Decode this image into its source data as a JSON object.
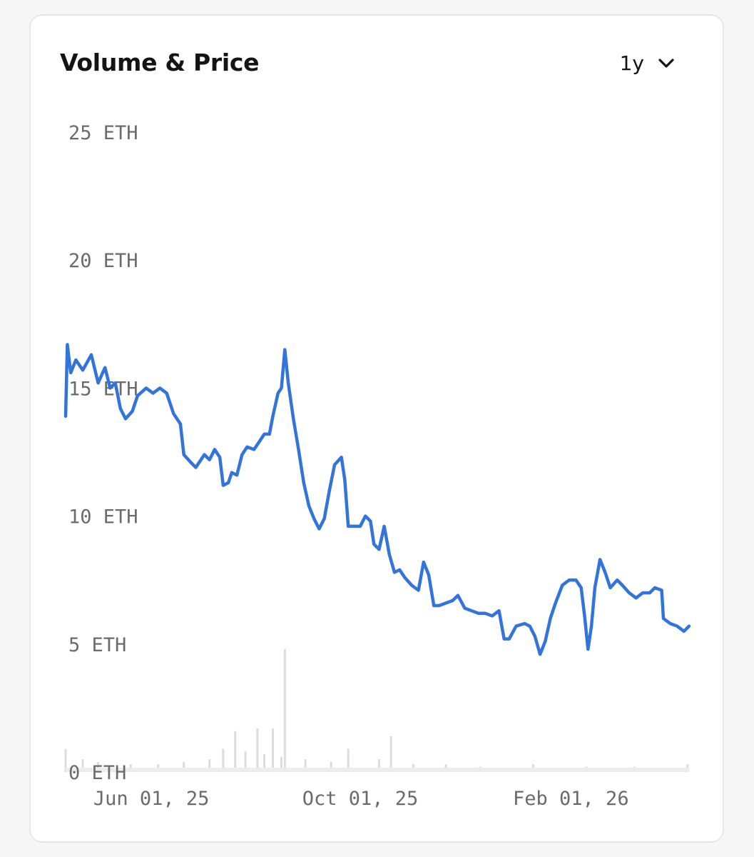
{
  "card": {
    "title": "Volume & Price",
    "range_selector": {
      "selected": "1y",
      "icon": "chevron-down-icon"
    }
  },
  "colors": {
    "background": "#f6f6f6",
    "card": "#ffffff",
    "price_line": "#3273dc",
    "volume_bars": "#dcdcdc",
    "tick_text": "#6b6b6b",
    "title_text": "#141414"
  },
  "chart_data": {
    "type": "line",
    "title": "Volume & Price",
    "xlabel": "",
    "ylabel": "",
    "y_unit": "ETH",
    "ylim": [
      0,
      25
    ],
    "y_ticks": [
      {
        "value": 25,
        "label": "25 ETH"
      },
      {
        "value": 20,
        "label": "20 ETH"
      },
      {
        "value": 15,
        "label": "15 ETH"
      },
      {
        "value": 10,
        "label": "10 ETH"
      },
      {
        "value": 5,
        "label": "5 ETH"
      },
      {
        "value": 0,
        "label": "0 ETH"
      }
    ],
    "x_ticks": [
      {
        "date": "2025-06-01",
        "label": "Jun 01, 25"
      },
      {
        "date": "2025-10-01",
        "label": "Oct 01, 25"
      },
      {
        "date": "2026-02-01",
        "label": "Feb 01, 26"
      }
    ],
    "xlim": [
      "2025-04-12",
      "2026-04-11"
    ],
    "grid": false,
    "legend": "none",
    "series": [
      {
        "type": "line",
        "points": [
          [
            "2025-04-12",
            13.9
          ],
          [
            "2025-04-13",
            16.7
          ],
          [
            "2025-04-15",
            15.6
          ],
          [
            "2025-04-18",
            16.1
          ],
          [
            "2025-04-22",
            15.7
          ],
          [
            "2025-04-27",
            16.3
          ],
          [
            "2025-05-01",
            15.2
          ],
          [
            "2025-05-05",
            15.8
          ],
          [
            "2025-05-08",
            15.0
          ],
          [
            "2025-05-11",
            15.2
          ],
          [
            "2025-05-14",
            14.2
          ],
          [
            "2025-05-17",
            13.8
          ],
          [
            "2025-05-21",
            14.1
          ],
          [
            "2025-05-24",
            14.7
          ],
          [
            "2025-05-29",
            15.0
          ],
          [
            "2025-06-02",
            14.8
          ],
          [
            "2025-06-06",
            15.0
          ],
          [
            "2025-06-10",
            14.8
          ],
          [
            "2025-06-14",
            14.0
          ],
          [
            "2025-06-18",
            13.6
          ],
          [
            "2025-06-20",
            12.4
          ],
          [
            "2025-06-24",
            12.1
          ],
          [
            "2025-06-27",
            11.9
          ],
          [
            "2025-07-02",
            12.4
          ],
          [
            "2025-07-05",
            12.2
          ],
          [
            "2025-07-08",
            12.6
          ],
          [
            "2025-07-11",
            12.3
          ],
          [
            "2025-07-13",
            11.2
          ],
          [
            "2025-07-16",
            11.3
          ],
          [
            "2025-07-18",
            11.7
          ],
          [
            "2025-07-21",
            11.6
          ],
          [
            "2025-07-24",
            12.4
          ],
          [
            "2025-07-27",
            12.7
          ],
          [
            "2025-07-31",
            12.6
          ],
          [
            "2025-08-03",
            12.9
          ],
          [
            "2025-08-06",
            13.2
          ],
          [
            "2025-08-09",
            13.2
          ],
          [
            "2025-08-11",
            13.9
          ],
          [
            "2025-08-14",
            14.8
          ],
          [
            "2025-08-16",
            15.0
          ],
          [
            "2025-08-18",
            16.5
          ],
          [
            "2025-08-20",
            15.2
          ],
          [
            "2025-08-23",
            13.8
          ],
          [
            "2025-08-26",
            12.6
          ],
          [
            "2025-08-29",
            11.3
          ],
          [
            "2025-09-01",
            10.4
          ],
          [
            "2025-09-04",
            9.9
          ],
          [
            "2025-09-07",
            9.5
          ],
          [
            "2025-09-10",
            9.9
          ],
          [
            "2025-09-13",
            11.0
          ],
          [
            "2025-09-16",
            12.0
          ],
          [
            "2025-09-20",
            12.3
          ],
          [
            "2025-09-22",
            11.4
          ],
          [
            "2025-09-24",
            9.6
          ],
          [
            "2025-09-28",
            9.6
          ],
          [
            "2025-10-01",
            9.6
          ],
          [
            "2025-10-04",
            10.0
          ],
          [
            "2025-10-07",
            9.8
          ],
          [
            "2025-10-09",
            8.9
          ],
          [
            "2025-10-12",
            8.7
          ],
          [
            "2025-10-15",
            9.6
          ],
          [
            "2025-10-18",
            8.5
          ],
          [
            "2025-10-21",
            7.8
          ],
          [
            "2025-10-24",
            7.9
          ],
          [
            "2025-10-27",
            7.6
          ],
          [
            "2025-10-31",
            7.3
          ],
          [
            "2025-11-04",
            7.1
          ],
          [
            "2025-11-07",
            8.2
          ],
          [
            "2025-11-10",
            7.7
          ],
          [
            "2025-11-13",
            6.5
          ],
          [
            "2025-11-16",
            6.5
          ],
          [
            "2025-11-20",
            6.6
          ],
          [
            "2025-11-24",
            6.7
          ],
          [
            "2025-11-27",
            6.9
          ],
          [
            "2025-12-01",
            6.4
          ],
          [
            "2025-12-05",
            6.3
          ],
          [
            "2025-12-09",
            6.2
          ],
          [
            "2025-12-13",
            6.2
          ],
          [
            "2025-12-17",
            6.1
          ],
          [
            "2025-12-21",
            6.3
          ],
          [
            "2025-12-24",
            5.2
          ],
          [
            "2025-12-27",
            5.2
          ],
          [
            "2025-12-31",
            5.7
          ],
          [
            "2026-01-05",
            5.8
          ],
          [
            "2026-01-08",
            5.7
          ],
          [
            "2026-01-11",
            5.3
          ],
          [
            "2026-01-14",
            4.6
          ],
          [
            "2026-01-17",
            5.1
          ],
          [
            "2026-01-20",
            6.0
          ],
          [
            "2026-01-23",
            6.6
          ],
          [
            "2026-01-27",
            7.3
          ],
          [
            "2026-01-31",
            7.5
          ],
          [
            "2026-02-04",
            7.5
          ],
          [
            "2026-02-07",
            7.2
          ],
          [
            "2026-02-09",
            6.1
          ],
          [
            "2026-02-11",
            4.8
          ],
          [
            "2026-02-13",
            5.7
          ],
          [
            "2026-02-15",
            7.2
          ],
          [
            "2026-02-18",
            8.3
          ],
          [
            "2026-02-21",
            7.8
          ],
          [
            "2026-02-24",
            7.2
          ],
          [
            "2026-02-28",
            7.5
          ],
          [
            "2026-03-03",
            7.3
          ],
          [
            "2026-03-07",
            7.0
          ],
          [
            "2026-03-11",
            6.8
          ],
          [
            "2026-03-15",
            7.0
          ],
          [
            "2026-03-19",
            7.0
          ],
          [
            "2026-03-22",
            7.2
          ],
          [
            "2026-03-26",
            7.1
          ],
          [
            "2026-03-27",
            6.0
          ],
          [
            "2026-03-31",
            5.8
          ],
          [
            "2026-04-04",
            5.7
          ],
          [
            "2026-04-08",
            5.5
          ],
          [
            "2026-04-11",
            5.7
          ]
        ]
      },
      {
        "type": "bar",
        "points": [
          [
            "2025-04-12",
            0.9
          ],
          [
            "2025-04-22",
            0.5
          ],
          [
            "2025-05-01",
            0.4
          ],
          [
            "2025-05-20",
            0.3
          ],
          [
            "2025-06-05",
            0.3
          ],
          [
            "2025-06-20",
            0.4
          ],
          [
            "2025-07-05",
            0.5
          ],
          [
            "2025-07-13",
            0.9
          ],
          [
            "2025-07-20",
            1.6
          ],
          [
            "2025-07-26",
            0.8
          ],
          [
            "2025-08-02",
            1.7
          ],
          [
            "2025-08-06",
            0.7
          ],
          [
            "2025-08-11",
            1.7
          ],
          [
            "2025-08-16",
            0.6
          ],
          [
            "2025-08-18",
            4.8
          ],
          [
            "2025-08-30",
            0.5
          ],
          [
            "2025-09-14",
            0.4
          ],
          [
            "2025-09-24",
            0.9
          ],
          [
            "2025-10-12",
            0.5
          ],
          [
            "2025-10-19",
            1.4
          ],
          [
            "2025-11-01",
            0.3
          ],
          [
            "2025-11-20",
            0.3
          ],
          [
            "2025-12-10",
            0.2
          ],
          [
            "2026-01-10",
            0.3
          ],
          [
            "2026-02-10",
            0.2
          ],
          [
            "2026-03-10",
            0.2
          ],
          [
            "2026-04-10",
            0.3
          ]
        ]
      }
    ]
  }
}
